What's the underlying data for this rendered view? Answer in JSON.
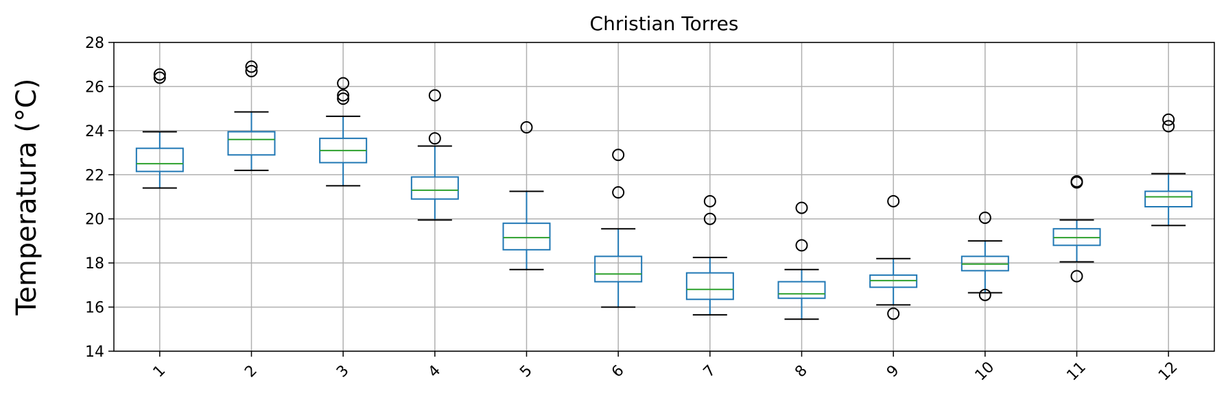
{
  "chart_data": {
    "type": "box",
    "title": "Christian Torres",
    "xlabel": "",
    "ylabel": "Temperatura (°C)",
    "ylim": [
      14,
      28
    ],
    "yticks": [
      14,
      16,
      18,
      20,
      22,
      24,
      26,
      28
    ],
    "grid": true,
    "categories": [
      "1",
      "2",
      "3",
      "4",
      "5",
      "6",
      "7",
      "8",
      "9",
      "10",
      "11",
      "12"
    ],
    "boxes": [
      {
        "category": "1",
        "whisker_low": 21.4,
        "q1": 22.15,
        "median": 22.5,
        "q3": 23.2,
        "whisker_high": 23.95,
        "outliers": [
          26.4,
          26.55
        ]
      },
      {
        "category": "2",
        "whisker_low": 22.2,
        "q1": 22.9,
        "median": 23.6,
        "q3": 23.95,
        "whisker_high": 24.85,
        "outliers": [
          26.7,
          26.9
        ]
      },
      {
        "category": "3",
        "whisker_low": 21.5,
        "q1": 22.55,
        "median": 23.1,
        "q3": 23.65,
        "whisker_high": 24.65,
        "outliers": [
          25.45,
          25.6,
          26.15
        ]
      },
      {
        "category": "4",
        "whisker_low": 19.95,
        "q1": 20.9,
        "median": 21.3,
        "q3": 21.9,
        "whisker_high": 23.3,
        "outliers": [
          23.65,
          25.6
        ]
      },
      {
        "category": "5",
        "whisker_low": 17.7,
        "q1": 18.6,
        "median": 19.15,
        "q3": 19.8,
        "whisker_high": 21.25,
        "outliers": [
          24.15
        ]
      },
      {
        "category": "6",
        "whisker_low": 16.0,
        "q1": 17.15,
        "median": 17.5,
        "q3": 18.3,
        "whisker_high": 19.55,
        "outliers": [
          21.2,
          22.9
        ]
      },
      {
        "category": "7",
        "whisker_low": 15.65,
        "q1": 16.35,
        "median": 16.8,
        "q3": 17.55,
        "whisker_high": 18.25,
        "outliers": [
          20.0,
          20.8
        ]
      },
      {
        "category": "8",
        "whisker_low": 15.45,
        "q1": 16.4,
        "median": 16.6,
        "q3": 17.15,
        "whisker_high": 17.7,
        "outliers": [
          18.8,
          20.5
        ]
      },
      {
        "category": "9",
        "whisker_low": 16.1,
        "q1": 16.9,
        "median": 17.2,
        "q3": 17.45,
        "whisker_high": 18.2,
        "outliers": [
          15.7,
          20.8
        ]
      },
      {
        "category": "10",
        "whisker_low": 16.65,
        "q1": 17.65,
        "median": 17.95,
        "q3": 18.3,
        "whisker_high": 19.0,
        "outliers": [
          16.55,
          20.05
        ]
      },
      {
        "category": "11",
        "whisker_low": 18.05,
        "q1": 18.8,
        "median": 19.15,
        "q3": 19.55,
        "whisker_high": 19.95,
        "outliers": [
          17.4,
          21.65,
          21.7
        ]
      },
      {
        "category": "12",
        "whisker_low": 19.7,
        "q1": 20.55,
        "median": 21.0,
        "q3": 21.25,
        "whisker_high": 22.05,
        "outliers": [
          24.2,
          24.5
        ]
      }
    ],
    "colors": {
      "box": "#1f77b4",
      "median": "#2ca02c",
      "whisker_cap": "#000000",
      "outlier": "#000000",
      "grid": "#b0b0b0"
    }
  }
}
